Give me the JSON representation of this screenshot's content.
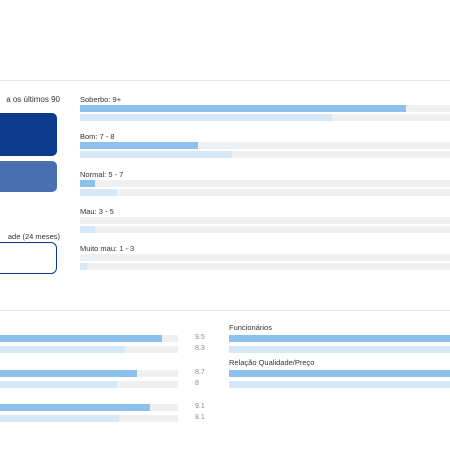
{
  "summary": {
    "intro_text": "a os últimos 90",
    "period_text": "ade (24 meses)"
  },
  "distribution": [
    {
      "label": "Soberbo: 9+",
      "main": 0.88,
      "secondary": 0.68
    },
    {
      "label": "Bom: 7 - 8",
      "main": 0.32,
      "secondary": 0.41
    },
    {
      "label": "Normal: 5 - 7",
      "main": 0.04,
      "secondary": 0.1
    },
    {
      "label": "Mau: 3 - 5",
      "main": 0.0,
      "secondary": 0.04
    },
    {
      "label": "Muito mau: 1 - 3",
      "main": 0.0,
      "secondary": 0.02
    }
  ],
  "categories_left": [
    {
      "main_value": "9.5",
      "secondary_value": "8.3",
      "main": 0.91,
      "secondary": 0.7
    },
    {
      "main_value": "8.7",
      "secondary_value": "8",
      "main": 0.77,
      "secondary": 0.66
    },
    {
      "main_value": "9.1",
      "secondary_value": "8.1",
      "main": 0.84,
      "secondary": 0.67
    }
  ],
  "categories_right": [
    {
      "label": "Funcionários",
      "main": 1.0,
      "secondary": 1.0
    },
    {
      "label": "Relação Qualidade/Preço",
      "main": 1.0,
      "secondary": 1.0
    }
  ],
  "colors": {
    "primary_bar": "#8ec0ee",
    "secondary_bar": "#d6e7f6",
    "track": "#eef0f2",
    "card_dark": "#0c3b8c",
    "card_mid": "#4a6fb0"
  }
}
